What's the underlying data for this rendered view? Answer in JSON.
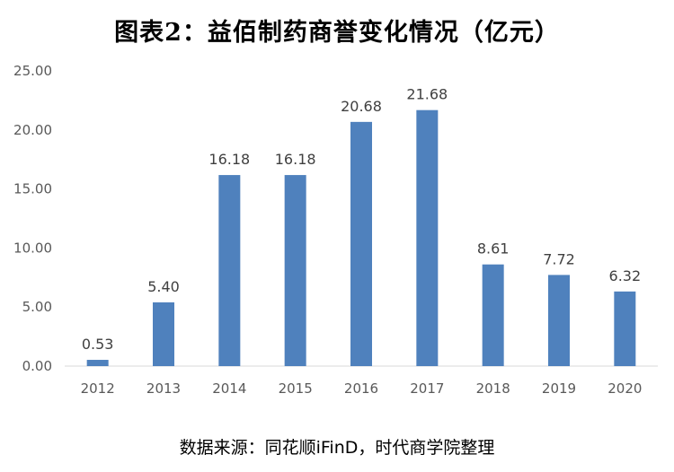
{
  "chart_data": {
    "type": "bar",
    "title": "图表2：益佰制药商誉变化情况（亿元）",
    "source": "数据来源：同花顺iFinD，时代商学院整理",
    "categories": [
      "2012",
      "2013",
      "2014",
      "2015",
      "2016",
      "2017",
      "2018",
      "2019",
      "2020"
    ],
    "series": [
      {
        "values": [
          0.53,
          5.4,
          16.18,
          16.18,
          20.68,
          21.68,
          8.61,
          7.72,
          6.32
        ],
        "value_labels": [
          "0.53",
          "5.40",
          "16.18",
          "16.18",
          "20.68",
          "21.68",
          "8.61",
          "7.72",
          "6.32"
        ]
      }
    ],
    "yticks": [
      "0.00",
      "5.00",
      "10.00",
      "15.00",
      "20.00",
      "25.00"
    ],
    "ylim": [
      0,
      25
    ],
    "xlabel": "",
    "ylabel": "",
    "grid": false,
    "legend": "none",
    "bar_color": "#4F81BD",
    "axis_color": "#D9D9D9"
  }
}
